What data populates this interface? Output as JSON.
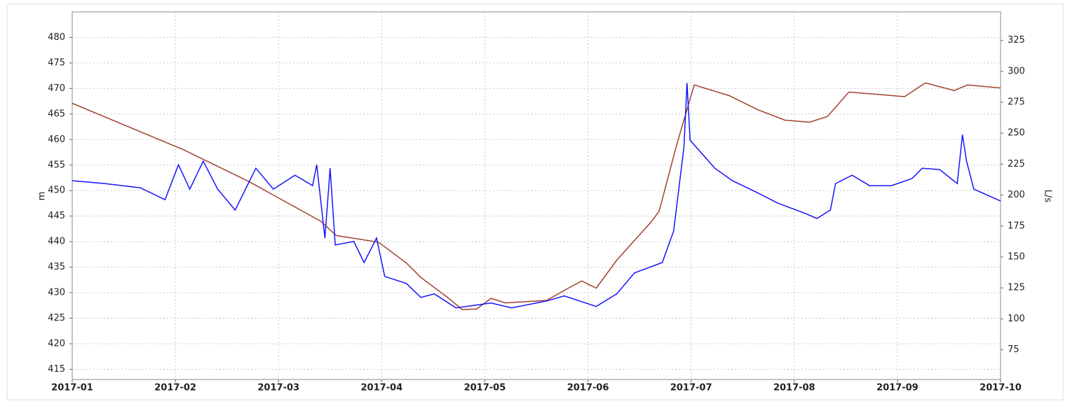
{
  "chart_data": {
    "type": "line",
    "y_label": "m",
    "y2_label": "L/s",
    "xlim": [
      0,
      9
    ],
    "xticks": [
      {
        "value": 0,
        "label": "2017-01"
      },
      {
        "value": 1,
        "label": "2017-02"
      },
      {
        "value": 2,
        "label": "2017-03"
      },
      {
        "value": 3,
        "label": "2017-04"
      },
      {
        "value": 4,
        "label": "2017-05"
      },
      {
        "value": 5,
        "label": "2017-06"
      },
      {
        "value": 6,
        "label": "2017-07"
      },
      {
        "value": 7,
        "label": "2017-08"
      },
      {
        "value": 8,
        "label": "2017-09"
      },
      {
        "value": 9,
        "label": "2017-10"
      }
    ],
    "ylim": [
      413,
      485
    ],
    "yticks": [
      415,
      420,
      425,
      430,
      435,
      440,
      445,
      450,
      455,
      460,
      465,
      470,
      475,
      480
    ],
    "y2lim": [
      51,
      348
    ],
    "y2ticks": [
      75,
      100,
      125,
      150,
      175,
      200,
      225,
      250,
      275,
      300,
      325
    ],
    "grid": true,
    "series": [
      {
        "color": "#a0412d",
        "axis": "y",
        "x": [
          0,
          1.08,
          1.71,
          2.41,
          2.56,
          2.97,
          3.24,
          3.38,
          3.65,
          3.78,
          3.92,
          4.06,
          4.2,
          4.6,
          4.81,
          4.94,
          5.08,
          5.28,
          5.61,
          5.69,
          5.86,
          6.03,
          6.37,
          6.64,
          6.91,
          7.15,
          7.32,
          7.53,
          8.07,
          8.27,
          8.55,
          8.68,
          9
        ],
        "values": [
          467.1,
          458,
          451.8,
          444,
          441.2,
          439.9,
          435.8,
          433,
          428.9,
          426.7,
          426.8,
          428.9,
          428,
          428.5,
          430.9,
          432.3,
          430.9,
          436.4,
          443.8,
          446,
          459,
          470.7,
          468.6,
          465.9,
          463.8,
          463.4,
          464.5,
          469.3,
          468.4,
          471.1,
          469.6,
          470.7,
          470.1
        ]
      },
      {
        "color": "#1414ff",
        "axis": "y2",
        "x": [
          0,
          0.32,
          0.66,
          0.9,
          1.03,
          1.14,
          1.27,
          1.41,
          1.58,
          1.78,
          1.95,
          2.16,
          2.33,
          2.37,
          2.45,
          2.5,
          2.55,
          2.73,
          2.83,
          2.95,
          3.03,
          3.24,
          3.38,
          3.51,
          3.72,
          4.06,
          4.26,
          4.6,
          4.77,
          5.08,
          5.28,
          5.45,
          5.72,
          5.83,
          5.93,
          5.96,
          5.99,
          6.23,
          6.4,
          6.64,
          6.84,
          7.11,
          7.22,
          7.35,
          7.4,
          7.56,
          7.73,
          7.94,
          8.14,
          8.24,
          8.41,
          8.58,
          8.63,
          8.67,
          8.74,
          9
        ],
        "values": [
          211.6,
          209.3,
          205.9,
          196.3,
          224.5,
          204.8,
          227.4,
          204.8,
          187.9,
          221.7,
          204.8,
          216.1,
          207.6,
          224.5,
          165.3,
          221.7,
          159.7,
          162.5,
          145.5,
          165.3,
          134.3,
          128.6,
          117.3,
          120.2,
          108.9,
          112.8,
          108.9,
          114.5,
          118.5,
          110,
          120.2,
          137.1,
          145.5,
          170.9,
          238.7,
          290.6,
          244.3,
          221.7,
          211.6,
          202,
          193.5,
          185,
          181.1,
          187.9,
          209.3,
          216.1,
          207.6,
          207.6,
          213.3,
          221.7,
          220.6,
          209.3,
          248.8,
          227.4,
          204.8,
          195.2
        ]
      }
    ]
  }
}
